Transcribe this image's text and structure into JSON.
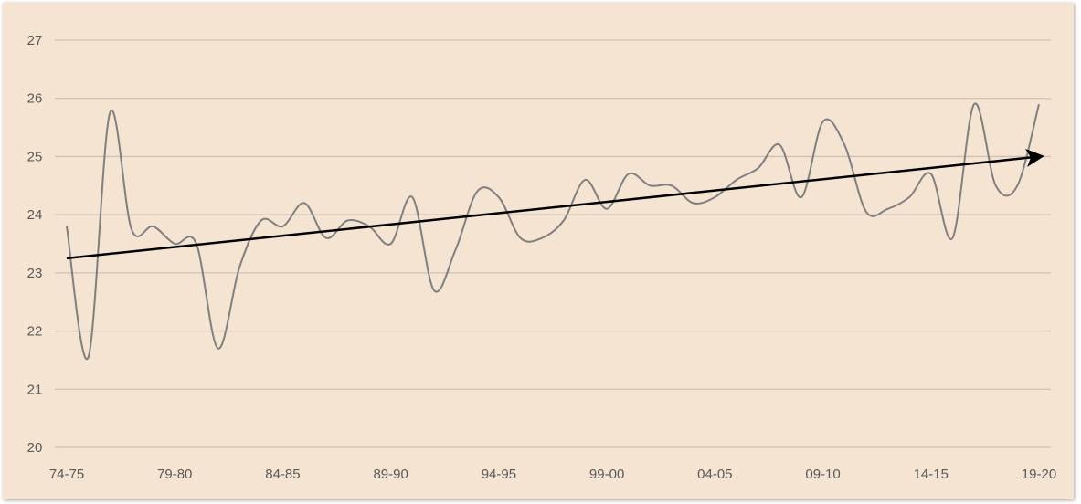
{
  "chart_data": {
    "type": "line",
    "title": "",
    "xlabel": "",
    "ylabel": "",
    "ylim": [
      20,
      27
    ],
    "yticks": [
      "20",
      "21",
      "22",
      "23",
      "24",
      "25",
      "26",
      "27"
    ],
    "xtick_labels": [
      "74-75",
      "79-80",
      "84-85",
      "89-90",
      "94-95",
      "99-00",
      "04-05",
      "09-10",
      "14-15",
      "19-20"
    ],
    "categories": [
      "74-75",
      "75-76",
      "76-77",
      "77-78",
      "78-79",
      "79-80",
      "80-81",
      "81-82",
      "82-83",
      "83-84",
      "84-85",
      "85-86",
      "86-87",
      "87-88",
      "88-89",
      "89-90",
      "90-91",
      "91-92",
      "92-93",
      "93-94",
      "94-95",
      "95-96",
      "96-97",
      "97-98",
      "98-99",
      "99-00",
      "00-01",
      "01-02",
      "02-03",
      "03-04",
      "04-05",
      "05-06",
      "06-07",
      "07-08",
      "08-09",
      "09-10",
      "10-11",
      "11-12",
      "12-13",
      "13-14",
      "14-15",
      "15-16",
      "16-17",
      "17-18",
      "18-19",
      "19-20"
    ],
    "series": [
      {
        "values": [
          23.8,
          21.55,
          25.75,
          23.75,
          23.8,
          23.5,
          23.5,
          21.7,
          23.1,
          23.9,
          23.8,
          24.2,
          23.6,
          23.9,
          23.8,
          23.5,
          24.3,
          22.7,
          23.4,
          24.4,
          24.3,
          23.6,
          23.6,
          23.9,
          24.6,
          24.1,
          24.7,
          24.5,
          24.5,
          24.2,
          24.3,
          24.6,
          24.8,
          25.2,
          24.3,
          25.6,
          25.2,
          24.05,
          24.1,
          24.3,
          24.7,
          23.6,
          25.9,
          24.5,
          24.5,
          25.9
        ],
        "color": "#7f7f7f"
      }
    ],
    "trend_arrow": {
      "from": [
        "74-75",
        23.25
      ],
      "to": [
        "19-20",
        25.0
      ],
      "color": "#000000"
    },
    "grid": true,
    "plot_background": "#f6e4d3",
    "gridline_color": "#d0c0b4"
  }
}
